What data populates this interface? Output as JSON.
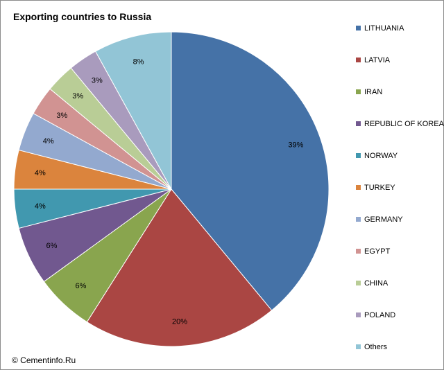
{
  "footer": {
    "copyright": "© Cementinfo.Ru"
  },
  "chart_data": {
    "type": "pie",
    "title": "Exporting countries to Russia",
    "categories": [
      "LITHUANIA",
      "LATVIA",
      "IRAN",
      "REPUBLIC OF KOREA",
      "NORWAY",
      "TURKEY",
      "GERMANY",
      "EGYPT",
      "CHINA",
      "POLAND",
      "Others"
    ],
    "values": [
      39,
      20,
      6,
      6,
      4,
      4,
      4,
      3,
      3,
      3,
      8
    ],
    "value_labels": [
      "39%",
      "20%",
      "6%",
      "6%",
      "4%",
      "4%",
      "4%",
      "3%",
      "3%",
      "3%",
      "8%"
    ],
    "colors": [
      "#4572a7",
      "#aa4643",
      "#89a54e",
      "#71588f",
      "#4198af",
      "#db843d",
      "#93a9cf",
      "#d19392",
      "#b9cd96",
      "#a99bbd",
      "#92c5d6"
    ],
    "legend_position": "right",
    "start_angle": "12 o'clock",
    "direction": "clockwise"
  }
}
